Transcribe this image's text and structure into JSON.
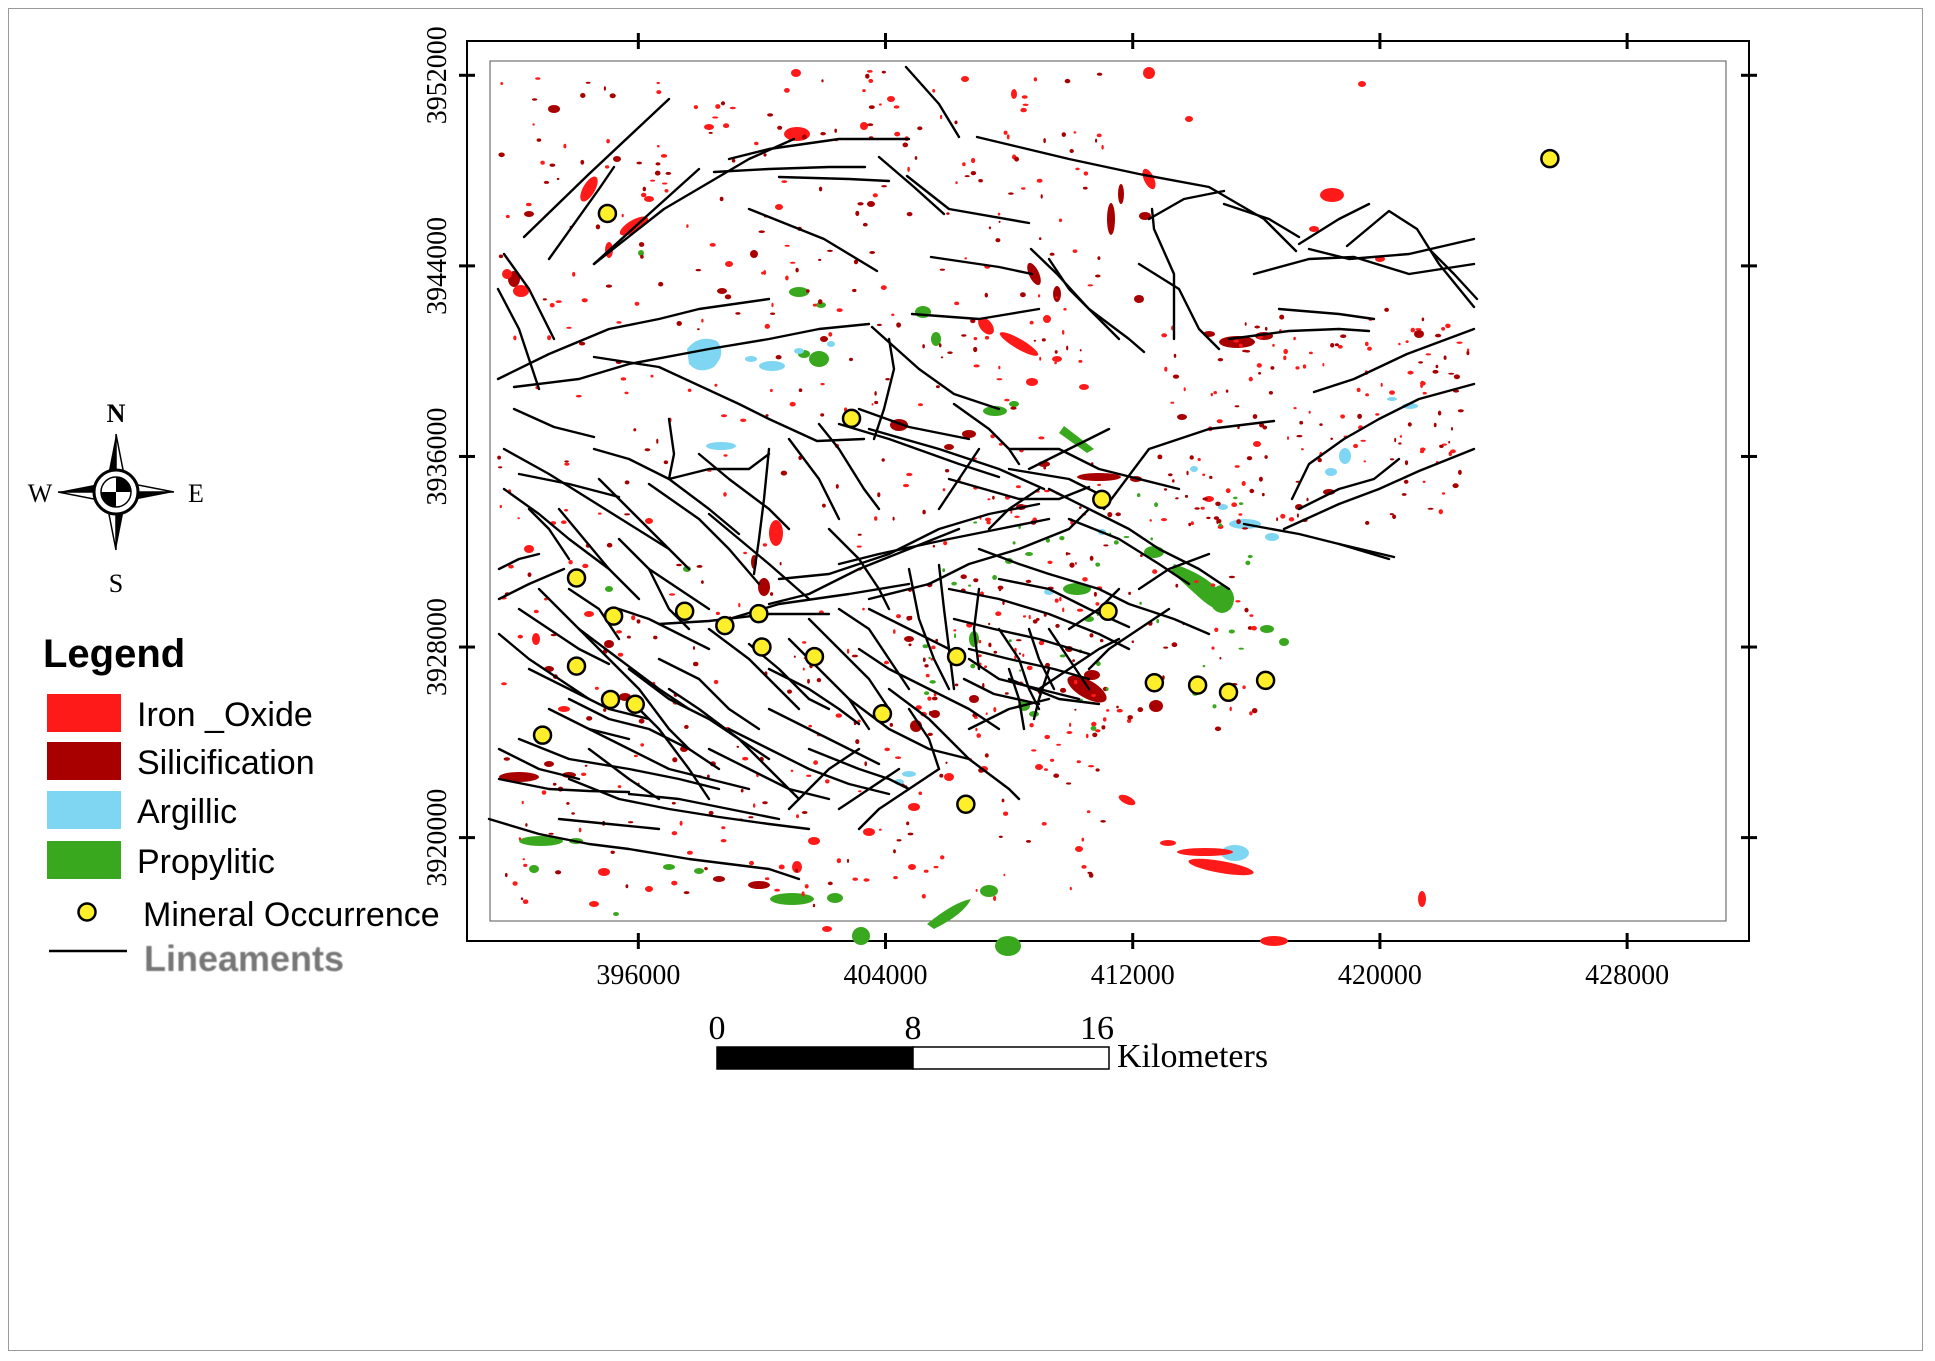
{
  "map": {
    "x_ticks": [
      "396000",
      "404000",
      "412000",
      "420000",
      "428000"
    ],
    "y_ticks": [
      "3952000",
      "3944000",
      "3936000",
      "3928000",
      "3920000"
    ],
    "scale_bar": {
      "labels": [
        "0",
        "8",
        "16"
      ],
      "unit": "Kilometers"
    },
    "north_arrow": {
      "n": "N",
      "s": "S",
      "e": "E",
      "w": "W"
    }
  },
  "legend": {
    "title": "Legend",
    "items": [
      {
        "label": "Iron _Oxide",
        "color": "#ff1a1a",
        "kind": "patch"
      },
      {
        "label": "Silicification",
        "color": "#a80000",
        "kind": "patch"
      },
      {
        "label": "Argillic",
        "color": "#7fd6f2",
        "kind": "patch"
      },
      {
        "label": "Propylitic",
        "color": "#3aa81e",
        "kind": "patch"
      },
      {
        "label": "Mineral Occurrence",
        "color": "#ffef2a",
        "kind": "point"
      },
      {
        "label": "Lineaments",
        "color": "#000000",
        "kind": "line"
      }
    ]
  },
  "chart_data": {
    "type": "scatter",
    "title": "",
    "xlabel": "",
    "ylabel": "",
    "xlim": [
      391200,
      431200
    ],
    "ylim": [
      3916500,
      3952600
    ],
    "series": [
      {
        "name": "Mineral Occurrence",
        "points": [
          [
            395000,
            3946200
          ],
          [
            425500,
            3948500
          ],
          [
            402900,
            3937600
          ],
          [
            411000,
            3934200
          ],
          [
            394000,
            3930900
          ],
          [
            395200,
            3929300
          ],
          [
            397500,
            3929500
          ],
          [
            398800,
            3928900
          ],
          [
            399900,
            3929400
          ],
          [
            400000,
            3928000
          ],
          [
            401700,
            3927600
          ],
          [
            406300,
            3927600
          ],
          [
            394000,
            3927200
          ],
          [
            395100,
            3925800
          ],
          [
            395900,
            3925600
          ],
          [
            411200,
            3929500
          ],
          [
            412700,
            3926500
          ],
          [
            414100,
            3926400
          ],
          [
            415100,
            3926100
          ],
          [
            416300,
            3926600
          ],
          [
            403900,
            3925200
          ],
          [
            392900,
            3924300
          ],
          [
            406600,
            3921400
          ]
        ]
      }
    ]
  }
}
